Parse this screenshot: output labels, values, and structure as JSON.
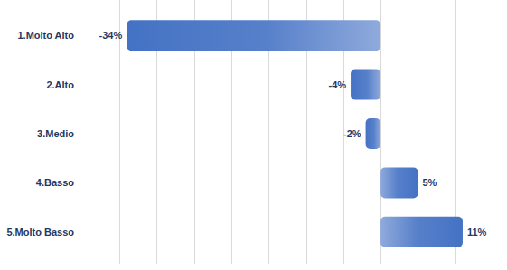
{
  "chart_data": {
    "type": "bar",
    "orientation": "horizontal",
    "categories": [
      "1.Molto Alto",
      "2.Alto",
      "3.Medio",
      "4.Basso",
      "5.Molto Basso"
    ],
    "values": [
      -34,
      -4,
      -2,
      5,
      11
    ],
    "value_labels": [
      "-34%",
      "-4%",
      "-2%",
      "5%",
      "11%"
    ],
    "color": "#4472c4",
    "xlim": [
      -35,
      15
    ],
    "xticks": [
      -35,
      -30,
      -25,
      -20,
      -15,
      -10,
      -5,
      0,
      5,
      10,
      15
    ],
    "grid": true,
    "data_labels": true,
    "tick_labels": false
  }
}
